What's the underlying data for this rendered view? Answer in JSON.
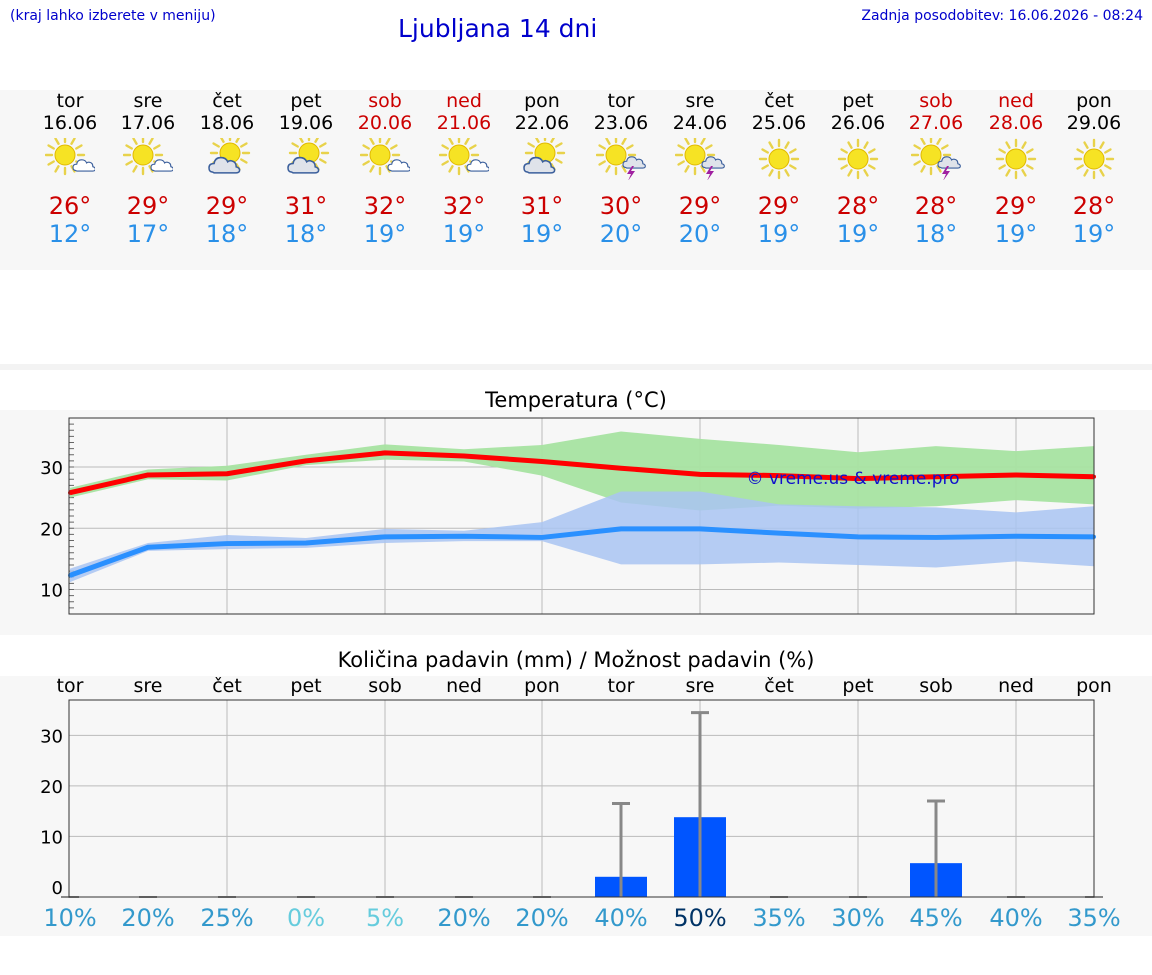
{
  "header": {
    "hint": "(kraj lahko izberete v meniju)",
    "title": "Ljubljana 14 dni",
    "updated": "Zadnja posodobitev: 16.06.2026 - 08:24"
  },
  "days": [
    {
      "name": "tor",
      "date": "16.06",
      "weekend": false,
      "icon": "sun-cloud-icon",
      "tmax": "26°",
      "tmin": "12°"
    },
    {
      "name": "sre",
      "date": "17.06",
      "weekend": false,
      "icon": "sun-cloud-icon",
      "tmax": "29°",
      "tmin": "17°"
    },
    {
      "name": "čet",
      "date": "18.06",
      "weekend": false,
      "icon": "cloud-sun-icon",
      "tmax": "29°",
      "tmin": "18°"
    },
    {
      "name": "pet",
      "date": "19.06",
      "weekend": false,
      "icon": "cloud-sun-icon",
      "tmax": "31°",
      "tmin": "18°"
    },
    {
      "name": "sob",
      "date": "20.06",
      "weekend": true,
      "icon": "sun-cloud-icon",
      "tmax": "32°",
      "tmin": "19°"
    },
    {
      "name": "ned",
      "date": "21.06",
      "weekend": true,
      "icon": "sun-cloud-icon",
      "tmax": "32°",
      "tmin": "19°"
    },
    {
      "name": "pon",
      "date": "22.06",
      "weekend": false,
      "icon": "cloud-sun-icon",
      "tmax": "31°",
      "tmin": "19°"
    },
    {
      "name": "tor",
      "date": "23.06",
      "weekend": false,
      "icon": "sun-thunderstorm-icon",
      "tmax": "30°",
      "tmin": "20°"
    },
    {
      "name": "sre",
      "date": "24.06",
      "weekend": false,
      "icon": "sun-thunderstorm-icon",
      "tmax": "29°",
      "tmin": "20°"
    },
    {
      "name": "čet",
      "date": "25.06",
      "weekend": false,
      "icon": "sun-icon",
      "tmax": "29°",
      "tmin": "19°"
    },
    {
      "name": "pet",
      "date": "26.06",
      "weekend": false,
      "icon": "sun-icon",
      "tmax": "28°",
      "tmin": "19°"
    },
    {
      "name": "sob",
      "date": "27.06",
      "weekend": true,
      "icon": "sun-thunderstorm-icon",
      "tmax": "28°",
      "tmin": "18°"
    },
    {
      "name": "ned",
      "date": "28.06",
      "weekend": true,
      "icon": "sun-icon",
      "tmax": "29°",
      "tmin": "19°"
    },
    {
      "name": "pon",
      "date": "29.06",
      "weekend": false,
      "icon": "sun-icon",
      "tmax": "28°",
      "tmin": "19°"
    }
  ],
  "colors": {
    "header_text": "#0000cc",
    "weekend": "#cc0000",
    "tmax": "#cc0000",
    "tmin": "#2a90e8",
    "max_line": "#ff0000",
    "max_band": "#a6e3a1",
    "min_line": "#2a90ff",
    "min_band": "#a9c4f2",
    "precip_bar": "#0055ff",
    "errorbar": "#888888",
    "chance_normal": "#3399cc",
    "chance_zero": "#66ccdd",
    "chance_high": "#003366"
  },
  "chart_data": [
    {
      "type": "line",
      "title": "Temperatura (°C)",
      "watermark": "© vreme.us & vreme.pro",
      "x": [
        "16.06",
        "17.06",
        "18.06",
        "19.06",
        "20.06",
        "21.06",
        "22.06",
        "23.06",
        "24.06",
        "25.06",
        "26.06",
        "27.06",
        "28.06",
        "29.06"
      ],
      "ylim": [
        6,
        38
      ],
      "yticks": [
        10,
        20,
        30
      ],
      "grid": true,
      "series": [
        {
          "values": [
            25.8,
            28.7,
            28.9,
            31.0,
            32.3,
            31.8,
            30.9,
            29.8,
            28.8,
            28.6,
            28.1,
            28.4,
            28.7,
            28.4
          ],
          "band_low": [
            25.0,
            28.0,
            27.8,
            30.3,
            31.2,
            30.9,
            28.6,
            24.2,
            22.9,
            23.7,
            23.2,
            23.6,
            24.6,
            23.9
          ],
          "band_high": [
            26.6,
            29.6,
            30.2,
            32.0,
            33.7,
            32.9,
            33.6,
            35.8,
            34.6,
            33.6,
            32.4,
            33.4,
            32.6,
            33.4
          ]
        },
        {
          "values": [
            12.3,
            16.9,
            17.5,
            17.6,
            18.6,
            18.7,
            18.5,
            19.9,
            19.9,
            19.2,
            18.6,
            18.5,
            18.7,
            18.6
          ],
          "band_low": [
            11.2,
            16.3,
            16.6,
            16.8,
            17.6,
            17.9,
            17.9,
            14.1,
            14.1,
            14.4,
            14.0,
            13.6,
            14.6,
            13.8
          ],
          "band_high": [
            13.4,
            17.6,
            18.9,
            18.4,
            19.9,
            19.6,
            21.0,
            26.0,
            26.0,
            23.9,
            23.6,
            23.4,
            22.6,
            23.6
          ]
        }
      ]
    },
    {
      "type": "bar",
      "title": "Količina padavin (mm) / Možnost padavin (%)",
      "categories": [
        "tor",
        "sre",
        "čet",
        "pet",
        "sob",
        "ned",
        "pon",
        "tor",
        "sre",
        "čet",
        "pet",
        "sob",
        "ned",
        "pon"
      ],
      "ylim": [
        -2,
        37
      ],
      "yticks": [
        0,
        10,
        20,
        30
      ],
      "grid": true,
      "values": [
        0,
        0,
        0,
        0,
        0,
        0,
        0,
        2,
        13.8,
        0,
        0,
        4.7,
        0,
        0
      ],
      "error_high": [
        0,
        0,
        0,
        0,
        0,
        0,
        0,
        16.5,
        34.5,
        0,
        0,
        17,
        0,
        0
      ],
      "chance": [
        "10%",
        "20%",
        "25%",
        "0%",
        "5%",
        "20%",
        "20%",
        "40%",
        "50%",
        "35%",
        "30%",
        "45%",
        "40%",
        "35%"
      ],
      "chance_level": [
        "normal",
        "normal",
        "normal",
        "zero",
        "zero",
        "normal",
        "normal",
        "normal",
        "high",
        "normal",
        "normal",
        "normal",
        "normal",
        "normal"
      ]
    }
  ]
}
